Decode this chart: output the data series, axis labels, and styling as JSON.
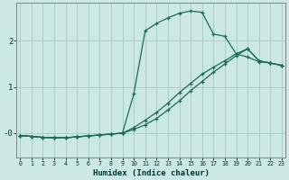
{
  "xlabel": "Humidex (Indice chaleur)",
  "bg_color": "#cce8e4",
  "grid_color": "#aaceca",
  "line_color": "#1a6b5a",
  "xlim": [
    -0.3,
    23.3
  ],
  "ylim": [
    -0.52,
    2.82
  ],
  "xtick_vals": [
    0,
    1,
    2,
    3,
    4,
    5,
    6,
    7,
    8,
    9,
    10,
    11,
    12,
    13,
    14,
    15,
    16,
    17,
    18,
    19,
    20,
    21,
    22,
    23
  ],
  "ytick_vals": [
    0.0,
    1.0,
    2.0
  ],
  "ytick_labels": [
    "-0",
    "1",
    "2"
  ],
  "line1_x": [
    0,
    1,
    2,
    3,
    4,
    5,
    6,
    7,
    8,
    9,
    10,
    11,
    12,
    13,
    14,
    15,
    16,
    17,
    18,
    19,
    20,
    21,
    22,
    23
  ],
  "line1_y": [
    -0.05,
    -0.07,
    -0.09,
    -0.1,
    -0.1,
    -0.08,
    -0.06,
    -0.04,
    -0.02,
    0.0,
    0.85,
    2.22,
    2.38,
    2.5,
    2.6,
    2.65,
    2.62,
    2.15,
    2.1,
    1.72,
    1.65,
    1.55,
    1.52,
    1.47
  ],
  "line2_x": [
    0,
    1,
    2,
    3,
    4,
    5,
    6,
    7,
    8,
    9,
    10,
    11,
    12,
    13,
    14,
    15,
    16,
    17,
    18,
    19,
    20,
    21,
    22,
    23
  ],
  "line2_y": [
    -0.05,
    -0.07,
    -0.09,
    -0.1,
    -0.1,
    -0.08,
    -0.06,
    -0.04,
    -0.02,
    0.0,
    0.12,
    0.28,
    0.45,
    0.65,
    0.88,
    1.08,
    1.28,
    1.43,
    1.57,
    1.72,
    1.83,
    1.57,
    1.52,
    1.47
  ],
  "line3_x": [
    0,
    1,
    2,
    3,
    4,
    5,
    6,
    7,
    8,
    9,
    10,
    11,
    12,
    13,
    14,
    15,
    16,
    17,
    18,
    19,
    20,
    21,
    22,
    23
  ],
  "line3_y": [
    -0.05,
    -0.07,
    -0.09,
    -0.1,
    -0.1,
    -0.08,
    -0.06,
    -0.04,
    -0.02,
    0.0,
    0.08,
    0.18,
    0.32,
    0.5,
    0.7,
    0.92,
    1.12,
    1.32,
    1.5,
    1.68,
    1.83,
    1.57,
    1.52,
    1.47
  ]
}
